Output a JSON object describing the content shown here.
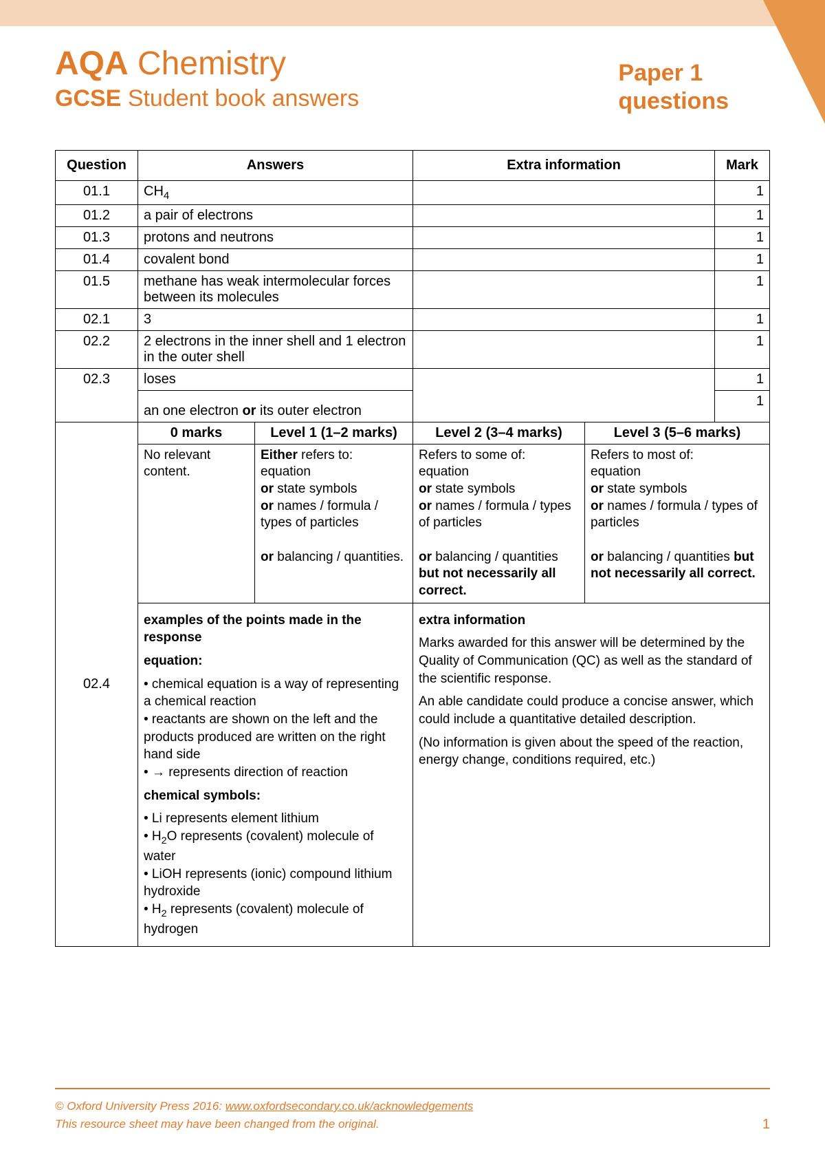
{
  "colors": {
    "accent": "#e07b2a",
    "topbar": "#f5d6b8",
    "corner": "#e8974a",
    "border": "#000000",
    "text": "#000000",
    "background": "#ffffff"
  },
  "header": {
    "brand_bold": "AQA",
    "brand_rest": "Chemistry",
    "line2_bold": "GCSE",
    "line2_rest": "Student book answers",
    "right_line1": "Paper 1",
    "right_line2": "questions"
  },
  "table": {
    "head": {
      "question": "Question",
      "answers": "Answers",
      "extra": "Extra information",
      "mark": "Mark"
    },
    "rows": [
      {
        "q": "01.1",
        "answer_html": "CH<span class='sub'>4</span>",
        "extra": "",
        "mark": "1"
      },
      {
        "q": "01.2",
        "answer_html": "a pair of electrons",
        "extra": "",
        "mark": "1"
      },
      {
        "q": "01.3",
        "answer_html": "protons and neutrons",
        "extra": "",
        "mark": "1"
      },
      {
        "q": "01.4",
        "answer_html": "covalent bond",
        "extra": "",
        "mark": "1"
      },
      {
        "q": "01.5",
        "answer_html": "methane has weak intermolecular forces between its molecules",
        "extra": "",
        "mark": "1"
      },
      {
        "q": "02.1",
        "answer_html": "3",
        "extra": "",
        "mark": "1"
      },
      {
        "q": "02.2",
        "answer_html": "2 electrons in the inner shell and 1 electron in the outer shell",
        "extra": "",
        "mark": "1"
      }
    ],
    "row_023": {
      "q": "02.3",
      "line1": "loses",
      "line2_html": "an one electron <b>or</b> its outer electron",
      "mark1": "1",
      "mark2": "1"
    },
    "row_024": {
      "q": "02.4",
      "level_heads": {
        "l0": "0 marks",
        "l1": "Level 1 (1–2 marks)",
        "l2": "Level 2 (3–4 marks)",
        "l3": "Level 3 (5–6 marks)"
      },
      "level_body": {
        "l0": "No relevant content.",
        "l1_html": "<b>Either</b> refers to:<br>equation<br><b>or</b> state symbols<br><b>or</b> names / formula / types of particles<br><br><b>or</b> balancing / quantities.",
        "l2_html": "Refers to some of:<br>equation<br><b>or</b> state symbols<br><b>or</b> names / formula / types of particles<br><br><b>or</b> balancing / quantities <b>but not necessarily all correct.</b>",
        "l3_html": "Refers to most of:<br>equation<br><b>or</b> state symbols<br><b>or</b> names / formula / types of particles<br><br><b>or</b> balancing / quantities <b>but not necessarily all correct.</b>"
      },
      "examples_html": "<p><b>examples of the points made in the response</b></p><p><b>equation:</b></p><p>• chemical equation is a way of representing a chemical reaction<br>• reactants are shown on the left and the products produced are written on the right hand side<br>• → represents direction of reaction</p><p><b>chemical symbols:</b></p><p>• Li represents element lithium<br>• H<span class='sub'>2</span>O represents (covalent) molecule of water<br>• LiOH represents (ionic) compound lithium hydroxide<br>• H<span class='sub'>2</span> represents (covalent) molecule of hydrogen</p>",
      "extra_html": "<p><b>extra information</b></p><p>Marks awarded for this answer will be determined by the Quality of Communication (QC) as well as the standard of the scientific response.</p><p>An able candidate could produce a concise answer, which could include a quantitative detailed description.</p><p>(No information is given about the speed of the reaction, energy change, conditions required, etc.)</p>"
    }
  },
  "footer": {
    "copyright_prefix": "© Oxford University Press 2016: ",
    "link_text": "www.oxfordsecondary.co.uk/acknowledgements",
    "disclaimer": "This resource sheet may have been changed from the original.",
    "page": "1"
  }
}
